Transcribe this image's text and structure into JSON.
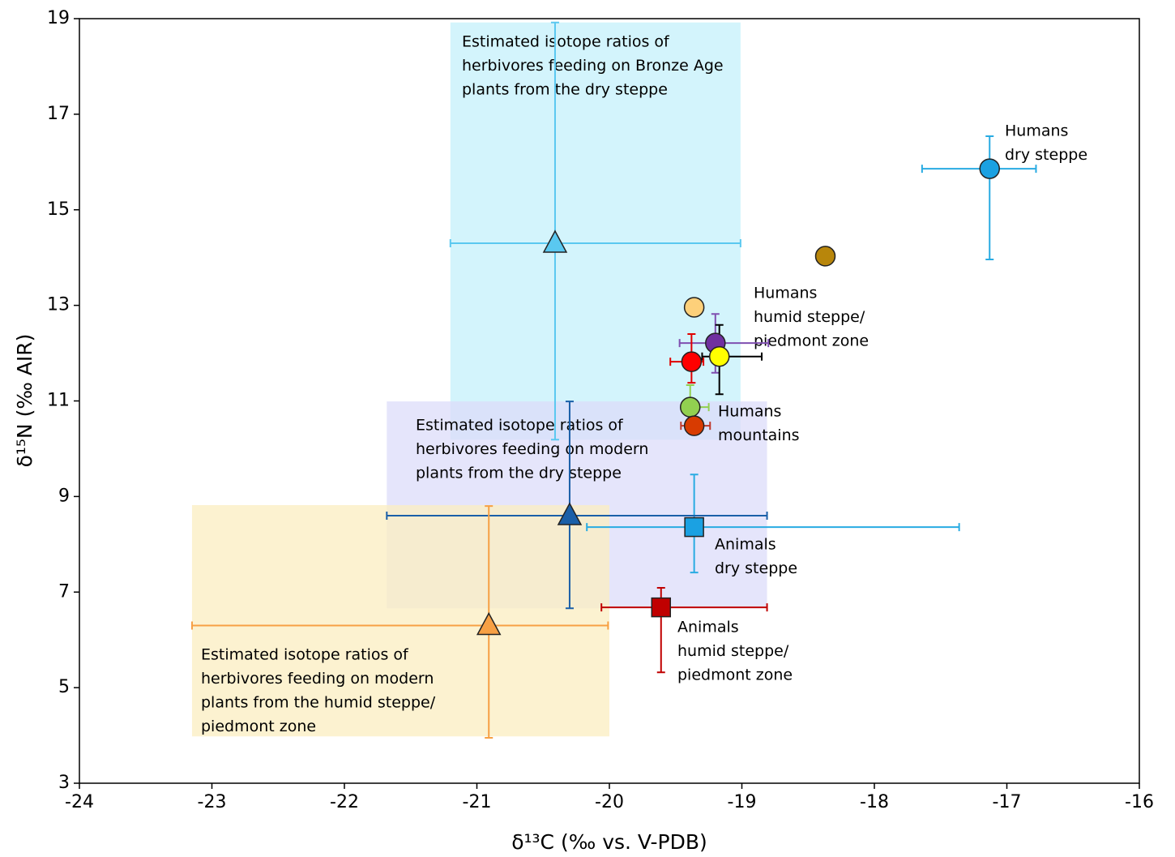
{
  "chart_data": {
    "type": "scatter",
    "xlabel": "δ¹³C (‰ vs. V-PDB)",
    "ylabel": "δ¹⁵N (‰ AIR)",
    "xlim": [
      -24,
      -16
    ],
    "ylim": [
      3,
      19
    ],
    "xticks": [
      -24,
      -23,
      -22,
      -21,
      -20,
      -19,
      -18,
      -17,
      -16
    ],
    "yticks": [
      3,
      5,
      7,
      9,
      11,
      13,
      15,
      17,
      19
    ],
    "regions": [
      {
        "xlim": [
          -21.2,
          -19.01
        ],
        "ylim": [
          10.19,
          18.92
        ],
        "color": "#c4f0fb"
      },
      {
        "xlim": [
          -21.68,
          -18.81
        ],
        "ylim": [
          6.66,
          10.99
        ],
        "color": "#dcdcfa"
      },
      {
        "xlim": [
          -23.15,
          -20.0
        ],
        "ylim": [
          3.98,
          8.82
        ],
        "color": "#fbeec0"
      }
    ],
    "points": [
      {
        "x": -17.13,
        "y": 15.86,
        "xerr": [
          0.51,
          0.35
        ],
        "yerr": [
          1.9,
          0.68
        ],
        "marker": "circle",
        "color": "#1ba1e2",
        "bar_color": "#29abe2"
      },
      {
        "x": -18.37,
        "y": 14.03,
        "marker": "circle",
        "color": "#b8860b",
        "bar_color": "#b8860b"
      },
      {
        "x": -19.36,
        "y": 12.96,
        "marker": "circle",
        "color": "#fdd07a",
        "bar_color": "#fdd07a"
      },
      {
        "x": -19.2,
        "y": 12.21,
        "xerr": [
          0.27,
          0.4
        ],
        "yerr": [
          0.62,
          0.61
        ],
        "marker": "circle",
        "color": "#7030a0",
        "bar_color": "#7f4fb0"
      },
      {
        "x": -19.17,
        "y": 11.93,
        "xerr": [
          0.13,
          0.32
        ],
        "yerr": [
          0.79,
          0.66
        ],
        "marker": "circle",
        "color": "#ffff00",
        "bar_color": "#000000"
      },
      {
        "x": -19.38,
        "y": 11.82,
        "xerr": [
          0.16,
          0.09
        ],
        "yerr": [
          0.44,
          0.58
        ],
        "marker": "circle",
        "color": "#ff0000",
        "bar_color": "#e00000"
      },
      {
        "x": -19.39,
        "y": 10.87,
        "xerr": [
          0.05,
          0.14
        ],
        "yerr": [
          0.05,
          0.46
        ],
        "marker": "circle",
        "color": "#92d050",
        "bar_color": "#92d050"
      },
      {
        "x": -19.36,
        "y": 10.48,
        "xerr": [
          0.1,
          0.12
        ],
        "marker": "circle",
        "color": "#d83b01",
        "bar_color": "#c0392b"
      },
      {
        "x": -19.36,
        "y": 8.36,
        "xerr": [
          0.81,
          2.0
        ],
        "yerr": [
          0.95,
          1.1
        ],
        "marker": "square",
        "color": "#1ba1e2",
        "bar_color": "#29abe2"
      },
      {
        "x": -19.61,
        "y": 6.68,
        "xerr": [
          0.45,
          0.8
        ],
        "yerr": [
          1.36,
          0.41
        ],
        "marker": "square",
        "color": "#c00000",
        "bar_color": "#c00000"
      },
      {
        "x": -20.41,
        "y": 14.3,
        "xerr": [
          0.79,
          1.4
        ],
        "yerr": [
          4.11,
          4.62
        ],
        "marker": "triangle",
        "color": "#5ac8f0",
        "bar_color": "#5ac8f0"
      },
      {
        "x": -20.3,
        "y": 8.6,
        "xerr": [
          1.38,
          1.49
        ],
        "yerr": [
          1.94,
          2.39
        ],
        "marker": "triangle",
        "color": "#1a5fa8",
        "bar_color": "#1a5fa8"
      },
      {
        "x": -20.91,
        "y": 6.3,
        "xerr": [
          2.24,
          0.9
        ],
        "yerr": [
          2.35,
          2.5
        ],
        "marker": "triangle",
        "color": "#f7a044",
        "bar_color": "#f7a044"
      }
    ],
    "annotations": [
      [
        "Estimated isotope ratios of",
        "herbivores feeding on Bronze Age",
        "plants from the dry steppe"
      ],
      [
        "Humans",
        "dry steppe"
      ],
      [
        "Humans",
        "humid steppe/",
        "piedmont zone"
      ],
      [
        "Humans",
        "mountains"
      ],
      [
        "Estimated isotope ratios of",
        "herbivores feeding on modern",
        "plants from the dry steppe"
      ],
      [
        "Animals",
        "dry steppe"
      ],
      [
        "Animals",
        "humid steppe/",
        "piedmont zone"
      ],
      [
        "Estimated isotope ratios of",
        "herbivores feeding on modern",
        "plants from the humid steppe/",
        "piedmont zone"
      ]
    ]
  }
}
